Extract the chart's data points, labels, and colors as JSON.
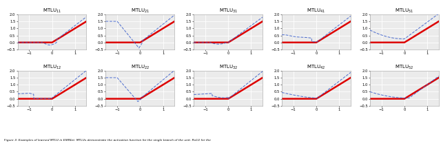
{
  "titles_row0": [
    "MTLU$_{11}$",
    "MTLU$_{21}$",
    "MTLU$_{31}$",
    "MTLU$_{41}$",
    "MTLU$_{51}$"
  ],
  "titles_row1": [
    "MTLU$_{12}$",
    "MTLU$_{22}$",
    "MTLU$_{32}$",
    "MTLU$_{42}$",
    "MTLU$_{52}$"
  ],
  "xlim": [
    -1.5,
    1.5
  ],
  "ylim": [
    -0.5,
    2.0
  ],
  "red_line_color": "#dd0000",
  "blue_line_color": "#4466cc",
  "bg_color": "#ebebeb",
  "grid_color": "#ffffff",
  "caption": "Figure 3: Examples of learned MTLU in ESRNet. MTLUs demonstrate the activation function for the single branch of the unit. ReLU for the",
  "figsize": [
    6.4,
    2.08
  ],
  "dpi": 100
}
